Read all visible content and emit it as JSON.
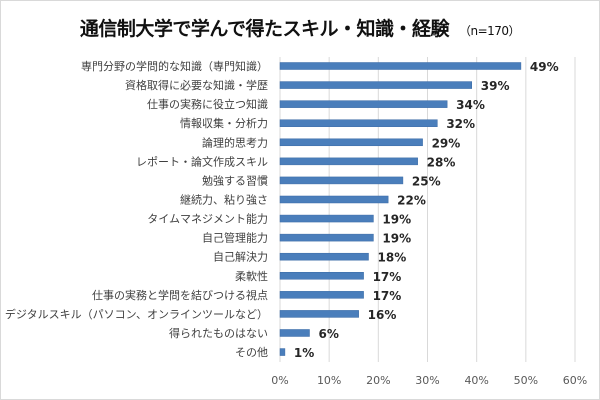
{
  "chart_data": {
    "type": "bar",
    "orientation": "horizontal",
    "title": "通信制大学で学んで得たスキル・知識・経験",
    "subtitle": "（n=170）",
    "categories": [
      "専門分野の学問的な知識（専門知識）",
      "資格取得に必要な知識・学歴",
      "仕事の実務に役立つ知識",
      "情報収集・分析力",
      "論理的思考力",
      "レポート・論文作成スキル",
      "勉強する習慣",
      "継続力、粘り強さ",
      "タイムマネジメント能力",
      "自己管理能力",
      "自己解決力",
      "柔軟性",
      "仕事の実務と学問を結びつける視点",
      "デジタルスキル（パソコン、オンラインツールなど）",
      "得られたものはない",
      "その他"
    ],
    "values": [
      49,
      39,
      34,
      32,
      29,
      28,
      25,
      22,
      19,
      19,
      18,
      17,
      17,
      16,
      6,
      1
    ],
    "value_labels": [
      "49%",
      "39%",
      "34%",
      "32%",
      "29%",
      "28%",
      "25%",
      "22%",
      "19%",
      "19%",
      "18%",
      "17%",
      "17%",
      "16%",
      "6%",
      "1%"
    ],
    "xlim": [
      0,
      60
    ],
    "xticks": [
      "0%",
      "10%",
      "20%",
      "30%",
      "40%",
      "50%",
      "60%"
    ],
    "xlabel": "",
    "ylabel": "",
    "grid": "vertical",
    "bar_color": "#4a7ebb"
  }
}
